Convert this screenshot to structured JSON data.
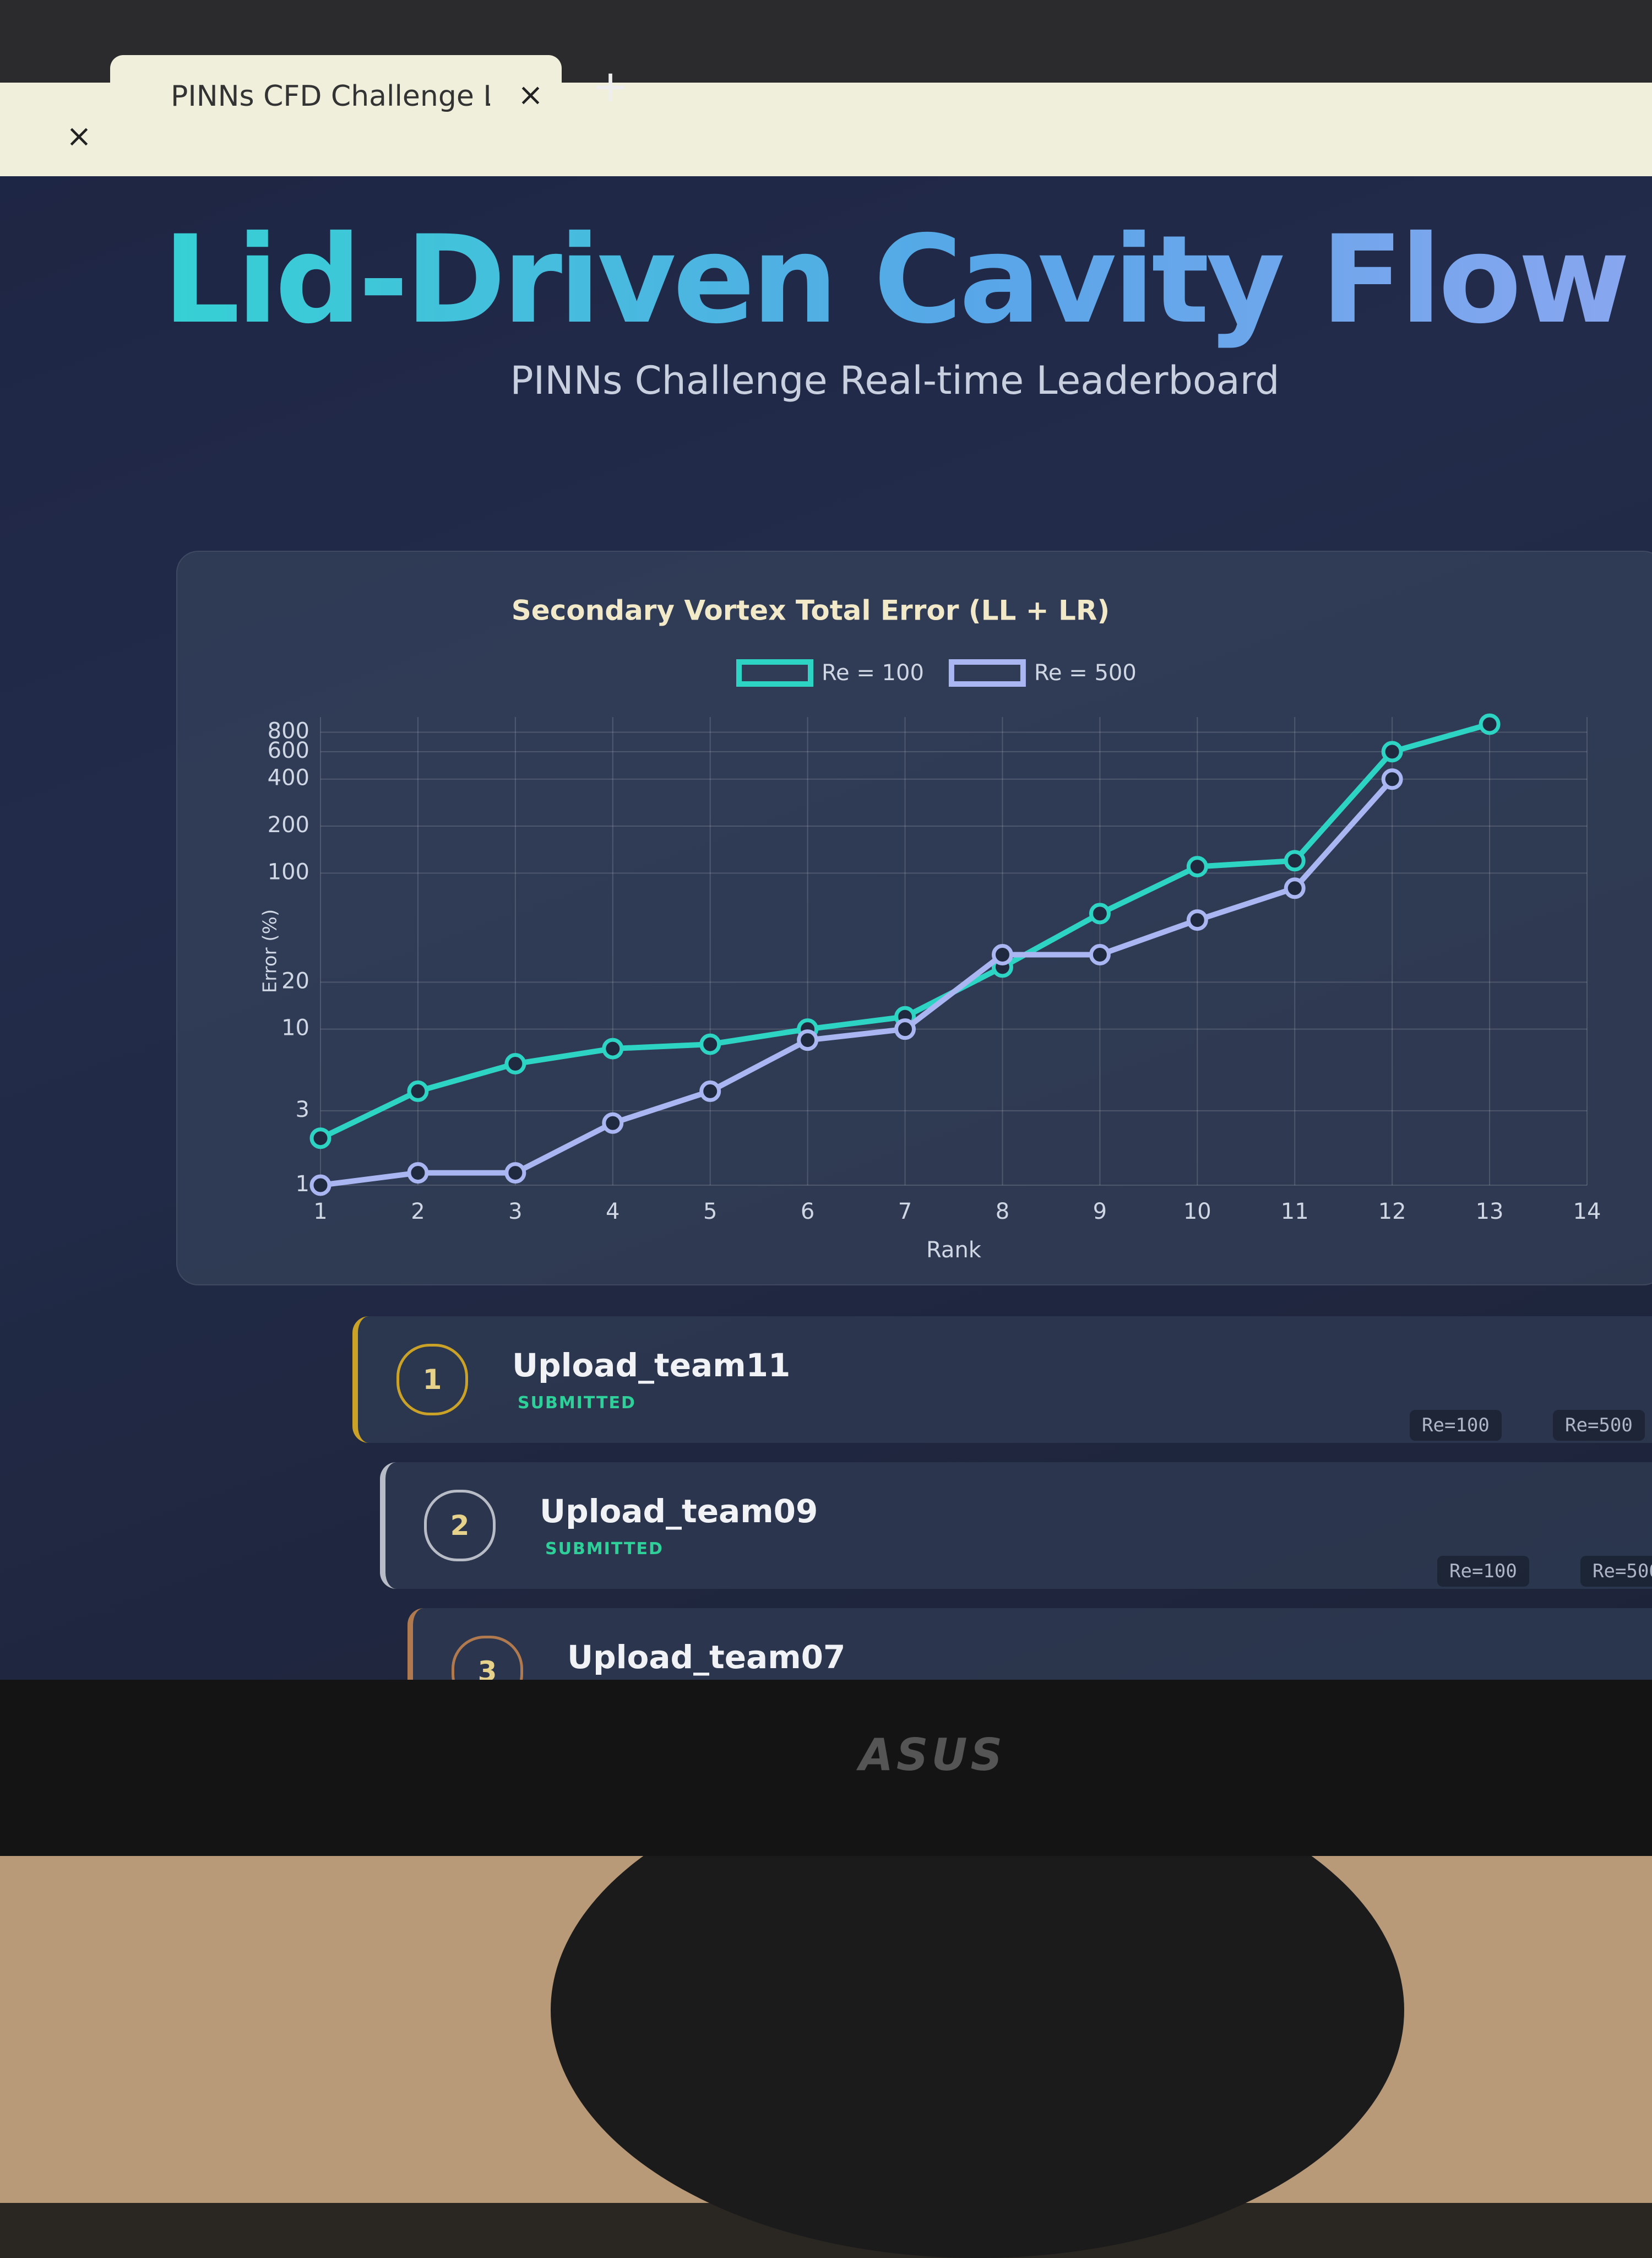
{
  "browser": {
    "tab_title": "PINNs CFD Challenge Lea"
  },
  "header": {
    "title": "Lid-Driven Cavity Flow",
    "subtitle": "PINNs Challenge Real-time Leaderboard"
  },
  "chart_data": {
    "type": "line",
    "title": "Secondary Vortex Total Error (LL + LR)",
    "x_label": "Rank",
    "y_label": "Error (%)",
    "x": [
      1,
      2,
      3,
      4,
      5,
      6,
      7,
      8,
      9,
      10,
      11,
      12,
      13
    ],
    "xlim": [
      1,
      14
    ],
    "xticks": [
      1,
      2,
      3,
      4,
      5,
      6,
      7,
      8,
      9,
      10,
      11,
      12,
      13,
      14
    ],
    "ylim": [
      1,
      1000
    ],
    "yticks": [
      1,
      3,
      10,
      20,
      100,
      200,
      400,
      600,
      800
    ],
    "log_y": true,
    "grid": true,
    "legend": "top",
    "series": [
      {
        "name": "Re = 100",
        "color": "#2dd4c4",
        "values": [
          2,
          4,
          6,
          7.5,
          8,
          10,
          12,
          25,
          55,
          110,
          120,
          600,
          900
        ]
      },
      {
        "name": "Re = 500",
        "color": "#a9b6f2",
        "values": [
          1,
          1.2,
          1.2,
          2.5,
          4,
          8.5,
          10,
          30,
          30,
          50,
          80,
          400,
          null
        ]
      }
    ]
  },
  "leaderboard": [
    {
      "rank": 1,
      "name": "Upload_team11",
      "status": "SUBMITTED",
      "badges": [
        "Re=100",
        "Re=500"
      ]
    },
    {
      "rank": 2,
      "name": "Upload_team09",
      "status": "SUBMITTED",
      "badges": [
        "Re=100",
        "Re=500"
      ]
    },
    {
      "rank": 3,
      "name": "Upload_team07"
    }
  ]
}
